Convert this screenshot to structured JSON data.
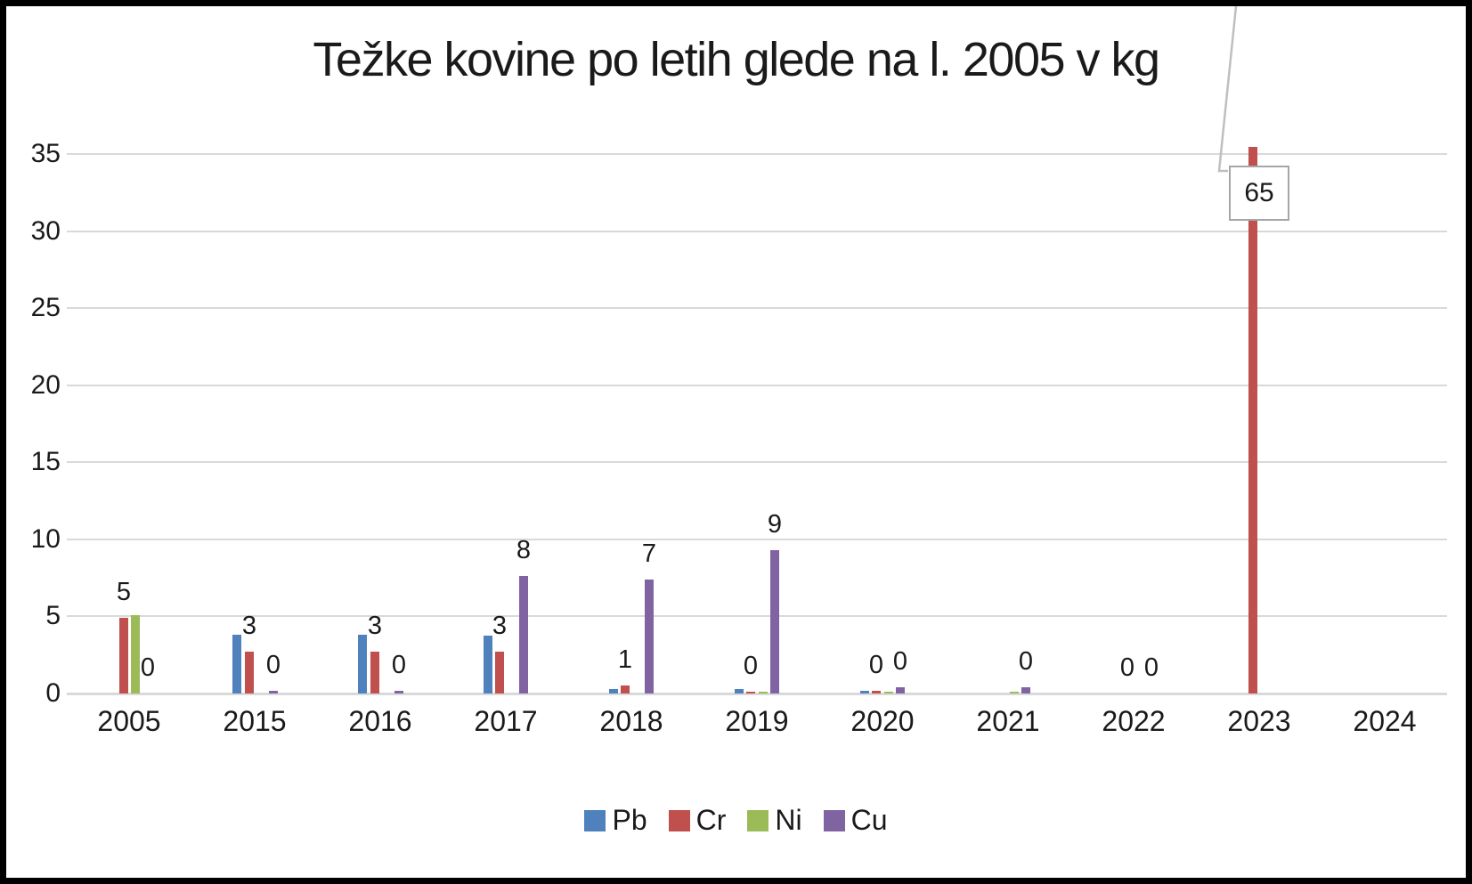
{
  "chart_data": {
    "type": "bar",
    "title": "Težke kovine po letih glede na l. 2005 v kg",
    "categories": [
      "2005",
      "2015",
      "2016",
      "2017",
      "2018",
      "2019",
      "2020",
      "2021",
      "2022",
      "2023",
      "2024"
    ],
    "series": [
      {
        "name": "Pb",
        "color": "#4F81BD",
        "values": [
          0,
          3.8,
          3.8,
          3.75,
          0.3,
          0.3,
          0.15,
          0,
          0,
          0,
          0
        ]
      },
      {
        "name": "Cr",
        "color": "#C0504D",
        "values": [
          4.9,
          2.7,
          2.7,
          2.7,
          0.5,
          0.1,
          0.15,
          0,
          0,
          65,
          0
        ],
        "labels": [
          "5",
          "3",
          "3",
          "3",
          "1",
          "0",
          "0",
          null,
          "0",
          null,
          null
        ]
      },
      {
        "name": "Ni",
        "color": "#9BBB59",
        "values": [
          5.1,
          0,
          0,
          0,
          0,
          0.1,
          0.1,
          0.1,
          0,
          0,
          0
        ]
      },
      {
        "name": "Cu",
        "color": "#8064A2",
        "values": [
          0,
          0.2,
          0.2,
          7.6,
          7.4,
          9.3,
          0.4,
          0.4,
          0,
          0,
          0
        ],
        "labels": [
          "0",
          "0",
          "0",
          "8",
          "7",
          "9",
          "0",
          "0",
          "0",
          null,
          null
        ]
      }
    ],
    "y_axis": {
      "min": 0,
      "max": 35,
      "tick_step": 5,
      "tick_labels": [
        "0",
        "5",
        "10",
        "15",
        "20",
        "25",
        "30",
        "35"
      ]
    },
    "gridlines": {
      "orientation": "horizontal",
      "color": "#D9D9D9"
    },
    "legend": {
      "position": "bottom",
      "entries": [
        "Pb",
        "Cr",
        "Ni",
        "Cu"
      ]
    },
    "callout": {
      "series": "Cr",
      "category": "2023",
      "value": "65",
      "clipped_at_axis_max": true
    }
  }
}
